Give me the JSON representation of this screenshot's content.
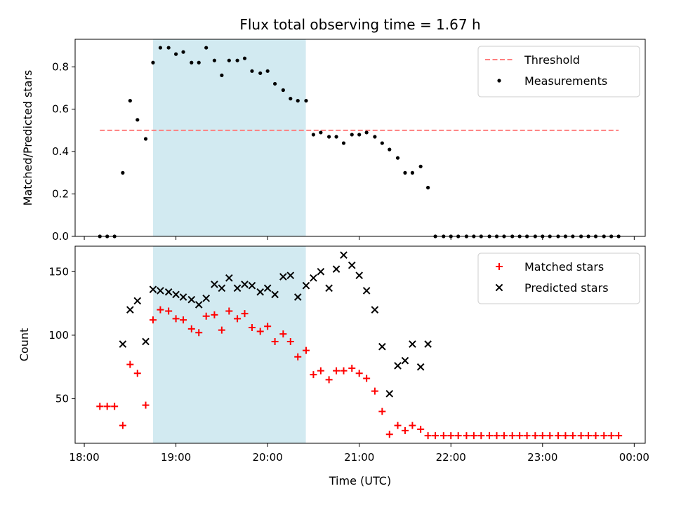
{
  "chart_data": {
    "type": "scatter",
    "title": "Flux total observing time = 1.67 h",
    "xlabel": "Time (UTC)",
    "x_unit": "hours UTC",
    "xlim": [
      17.9,
      24.12
    ],
    "x_ticks": [
      "18:00",
      "19:00",
      "20:00",
      "21:00",
      "22:00",
      "23:00",
      "00:00"
    ],
    "x_tick_values": [
      18,
      19,
      20,
      21,
      22,
      23,
      24
    ],
    "shaded_span": [
      18.75,
      20.417
    ],
    "shaded_color": "#add8e6",
    "panels": [
      {
        "ylabel": "Matched/Predicted stars",
        "ylim": [
          0,
          0.93
        ],
        "y_ticks": [
          "0.0",
          "0.2",
          "0.4",
          "0.6",
          "0.8"
        ],
        "y_tick_values": [
          0,
          0.2,
          0.4,
          0.6,
          0.8
        ],
        "legend_position": "upper right",
        "series": [
          {
            "name": "Threshold",
            "kind": "line",
            "style": "dashed",
            "color": "#ff7f7f",
            "x": [
              18.17,
              23.83
            ],
            "y": [
              0.5,
              0.5
            ]
          },
          {
            "name": "Measurements",
            "kind": "scatter",
            "marker": "dot",
            "color": "#000000",
            "x": [
              18.17,
              18.25,
              18.33,
              18.42,
              18.5,
              18.58,
              18.67,
              18.75,
              18.83,
              18.92,
              19.0,
              19.08,
              19.17,
              19.25,
              19.33,
              19.42,
              19.5,
              19.58,
              19.67,
              19.75,
              19.83,
              19.92,
              20.0,
              20.08,
              20.17,
              20.25,
              20.33,
              20.42,
              20.5,
              20.58,
              20.67,
              20.75,
              20.83,
              20.92,
              21.0,
              21.08,
              21.17,
              21.25,
              21.33,
              21.42,
              21.5,
              21.58,
              21.67,
              21.75,
              21.83,
              21.92,
              22.0,
              22.08,
              22.17,
              22.25,
              22.33,
              22.42,
              22.5,
              22.58,
              22.67,
              22.75,
              22.83,
              22.92,
              23.0,
              23.08,
              23.17,
              23.25,
              23.33,
              23.42,
              23.5,
              23.58,
              23.67,
              23.75,
              23.83
            ],
            "y": [
              0.0,
              0.0,
              0.0,
              0.3,
              0.64,
              0.55,
              0.46,
              0.82,
              0.89,
              0.89,
              0.86,
              0.87,
              0.82,
              0.82,
              0.89,
              0.83,
              0.76,
              0.83,
              0.83,
              0.84,
              0.78,
              0.77,
              0.78,
              0.72,
              0.69,
              0.65,
              0.64,
              0.64,
              0.48,
              0.49,
              0.47,
              0.47,
              0.44,
              0.48,
              0.48,
              0.49,
              0.47,
              0.44,
              0.41,
              0.37,
              0.3,
              0.3,
              0.33,
              0.23,
              0.0,
              0.0,
              0.0,
              0.0,
              0.0,
              0.0,
              0.0,
              0.0,
              0.0,
              0.0,
              0.0,
              0.0,
              0.0,
              0.0,
              0.0,
              0.0,
              0.0,
              0.0,
              0.0,
              0.0,
              0.0,
              0.0,
              0.0,
              0.0,
              0.0
            ]
          }
        ]
      },
      {
        "ylabel": "Count",
        "ylim": [
          15,
          170
        ],
        "y_ticks": [
          "50",
          "100",
          "150"
        ],
        "y_tick_values": [
          50,
          100,
          150
        ],
        "legend_position": "upper right",
        "series": [
          {
            "name": "Matched stars",
            "kind": "scatter",
            "marker": "plus",
            "color": "#ff0000",
            "x": [
              18.17,
              18.25,
              18.33,
              18.42,
              18.5,
              18.58,
              18.67,
              18.75,
              18.83,
              18.92,
              19.0,
              19.08,
              19.17,
              19.25,
              19.33,
              19.42,
              19.5,
              19.58,
              19.67,
              19.75,
              19.83,
              19.92,
              20.0,
              20.08,
              20.17,
              20.25,
              20.33,
              20.42,
              20.5,
              20.58,
              20.67,
              20.75,
              20.83,
              20.92,
              21.0,
              21.08,
              21.17,
              21.25,
              21.33,
              21.42,
              21.5,
              21.58,
              21.67,
              21.75,
              21.83,
              21.92,
              22.0,
              22.08,
              22.17,
              22.25,
              22.33,
              22.42,
              22.5,
              22.58,
              22.67,
              22.75,
              22.83,
              22.92,
              23.0,
              23.08,
              23.17,
              23.25,
              23.33,
              23.42,
              23.5,
              23.58,
              23.67,
              23.75,
              23.83
            ],
            "y": [
              44,
              44,
              44,
              29,
              77,
              70,
              45,
              112,
              120,
              119,
              113,
              112,
              105,
              102,
              115,
              116,
              104,
              119,
              113,
              117,
              106,
              103,
              107,
              95,
              101,
              95,
              83,
              88,
              69,
              72,
              65,
              72,
              72,
              74,
              70,
              66,
              56,
              40,
              22,
              29,
              25,
              29,
              26,
              21,
              21,
              21,
              21,
              21,
              21,
              21,
              21,
              21,
              21,
              21,
              21,
              21,
              21,
              21,
              21,
              21,
              21,
              21,
              21,
              21,
              21,
              21,
              21,
              21,
              21
            ]
          },
          {
            "name": "Predicted stars",
            "kind": "scatter",
            "marker": "x",
            "color": "#000000",
            "x": [
              18.42,
              18.5,
              18.58,
              18.67,
              18.75,
              18.83,
              18.92,
              19.0,
              19.08,
              19.17,
              19.25,
              19.33,
              19.42,
              19.5,
              19.58,
              19.67,
              19.75,
              19.83,
              19.92,
              20.0,
              20.08,
              20.17,
              20.25,
              20.33,
              20.42,
              20.5,
              20.58,
              20.67,
              20.75,
              20.83,
              20.92,
              21.0,
              21.08,
              21.17,
              21.25,
              21.33,
              21.42,
              21.5,
              21.58,
              21.67,
              21.75
            ],
            "y": [
              93,
              120,
              127,
              95,
              136,
              135,
              134,
              132,
              130,
              128,
              124,
              129,
              140,
              137,
              145,
              137,
              140,
              139,
              134,
              137,
              132,
              146,
              147,
              130,
              139,
              145,
              150,
              137,
              152,
              163,
              155,
              147,
              135,
              120,
              91,
              54,
              76,
              80,
              93,
              75,
              93
            ]
          }
        ]
      }
    ]
  }
}
